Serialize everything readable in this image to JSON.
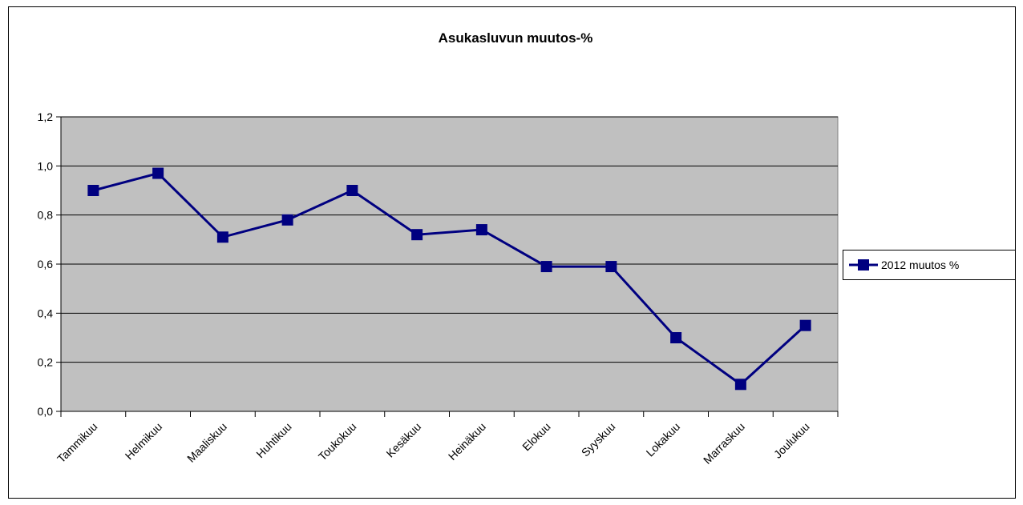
{
  "chart_data": {
    "type": "line",
    "title": "Asukasluvun muutos-%",
    "categories": [
      "Tammikuu",
      "Helmikuu",
      "Maaliskuu",
      "Huhtikuu",
      "Toukokuu",
      "Kesäkuu",
      "Heinäkuu",
      "Elokuu",
      "Syyskuu",
      "Lokakuu",
      "Marraskuu",
      "Joulukuu"
    ],
    "series": [
      {
        "name": "2012 muutos %",
        "color": "#000080",
        "values": [
          0.9,
          0.97,
          0.71,
          0.78,
          0.9,
          0.72,
          0.74,
          0.59,
          0.59,
          0.3,
          0.11,
          0.35
        ]
      }
    ],
    "ylim": [
      0,
      1.2
    ],
    "yticks": [
      {
        "value": 0,
        "label": "0,0"
      },
      {
        "value": 0.2,
        "label": "0,2"
      },
      {
        "value": 0.4,
        "label": "0,4"
      },
      {
        "value": 0.6,
        "label": "0,6"
      },
      {
        "value": 0.8,
        "label": "0,8"
      },
      {
        "value": 1.0,
        "label": "1,0"
      },
      {
        "value": 1.2,
        "label": "1,2"
      }
    ],
    "grid": true,
    "legend": "right"
  }
}
